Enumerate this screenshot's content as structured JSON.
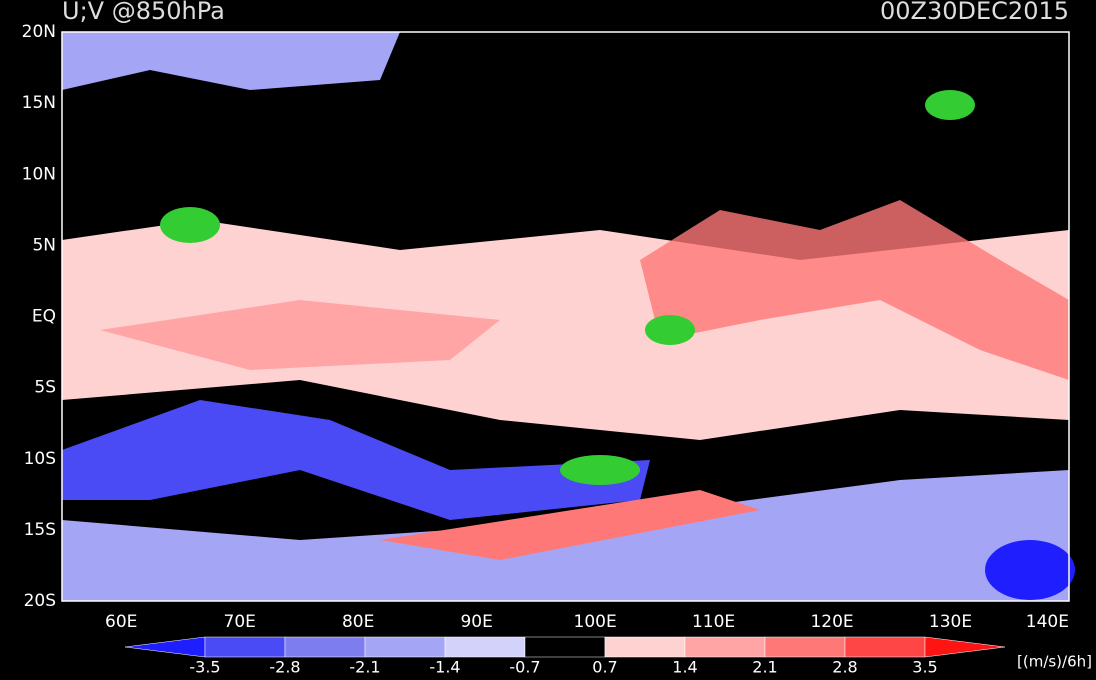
{
  "header": {
    "title": "U;V @850hPa",
    "time": "00Z30DEC2015"
  },
  "map": {
    "lat_labels": [
      "20N",
      "15N",
      "10N",
      "5N",
      "EQ",
      "5S",
      "10S",
      "15S",
      "20S"
    ],
    "lon_labels": [
      "60E",
      "70E",
      "80E",
      "90E",
      "100E",
      "110E",
      "120E",
      "130E",
      "140E"
    ]
  },
  "colorbar": {
    "labels": [
      "-3.5",
      "-2.8",
      "-2.1",
      "-1.4",
      "-0.7",
      "0.7",
      "1.4",
      "2.1",
      "2.8",
      "3.5"
    ],
    "colors": [
      "#1e1eff",
      "#4b4bf5",
      "#7d7df0",
      "#a5a5f5",
      "#d2d2fa",
      "#000000",
      "#ffd2d2",
      "#ffa5a5",
      "#ff7878",
      "#ff4646",
      "#ff1414"
    ],
    "units": "[(m/s)/6h]"
  }
}
